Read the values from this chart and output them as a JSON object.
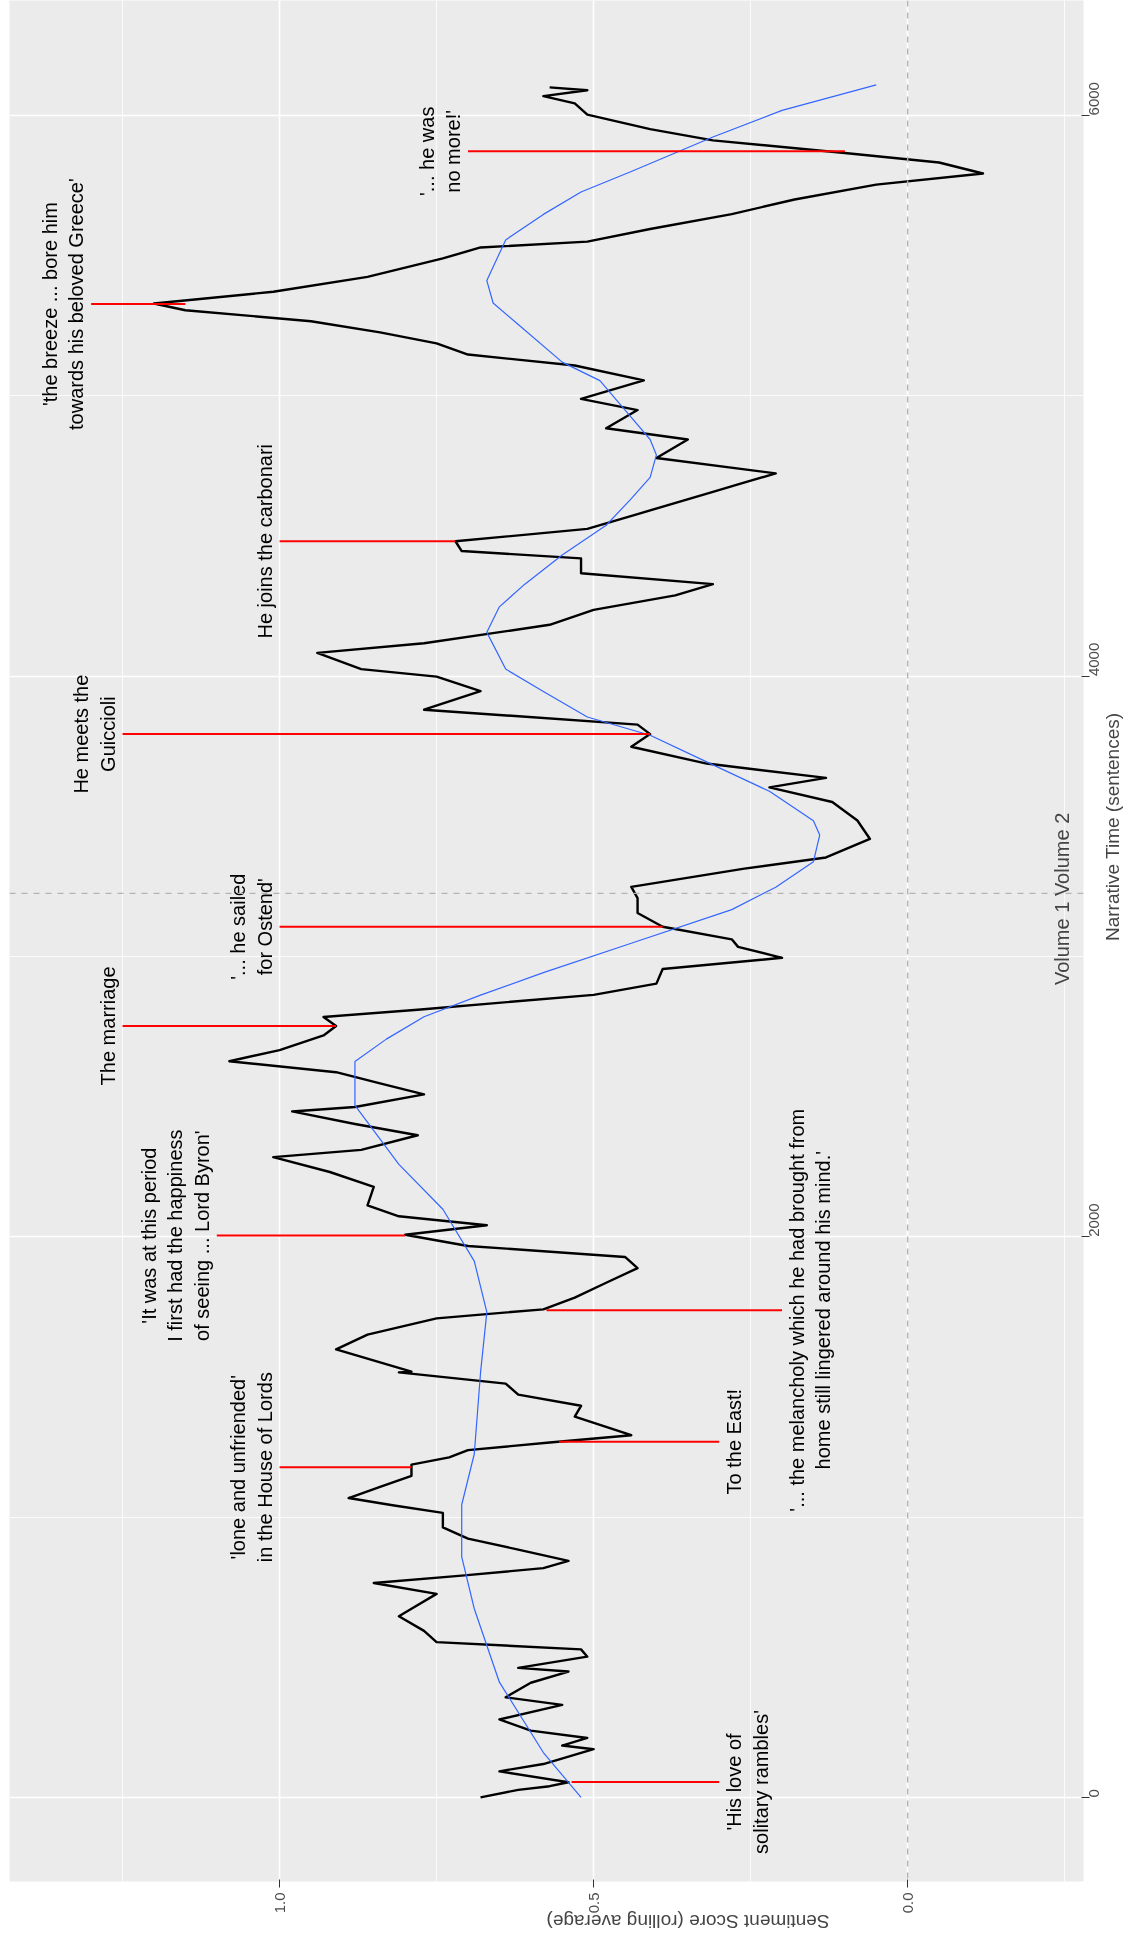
{
  "chart_data": {
    "type": "line",
    "xlabel": "Sentiment Score (rolling average)",
    "ylabel": "Narrative Time (sentences)",
    "xlim": [
      1.43,
      -0.28
    ],
    "ylim": [
      -300,
      6410
    ],
    "xticks": [
      {
        "value": 1.0,
        "label": "1.0"
      },
      {
        "value": 0.5,
        "label": "0.5"
      },
      {
        "value": 0,
        "label": "0.0"
      }
    ],
    "yticks": [
      0,
      2000,
      4000,
      6000
    ],
    "grid": true,
    "marker": "none",
    "line_style": "solid",
    "series": [
      {
        "color": "#000000",
        "type": "line",
        "values": [
          0,
          27,
          40,
          54,
          93,
          119,
          172,
          185,
          212,
          238,
          278,
          330,
          357,
          409,
          449,
          462,
          502,
          528,
          554,
          594,
          646,
          673,
          726,
          765,
          791,
          818,
          844,
          884,
          923,
          963,
          1015,
          1042,
          1068,
          1108,
          1147,
          1187,
          1213,
          1239,
          1266,
          1292,
          1358,
          1397,
          1437,
          1476,
          1516,
          1519,
          1598,
          1651,
          1709,
          1741,
          1783,
          1836,
          1888,
          1928,
          1967,
          2007,
          2041,
          2073,
          2112,
          2178,
          2231,
          2284,
          2310,
          2362,
          2402,
          2447,
          2463,
          2508,
          2547,
          2587,
          2626,
          2666,
          2718,
          2752,
          2784,
          2810,
          2863,
          2903,
          2955,
          2995,
          3034,
          3061,
          3106,
          3155,
          3208,
          3248,
          3313,
          3353,
          3419,
          3485,
          3551,
          3603,
          3637,
          3688,
          3748,
          3793,
          3827,
          3880,
          3946,
          3998,
          4025,
          4083,
          4117,
          4183,
          4236,
          4288,
          4328,
          4367,
          4420,
          4446,
          4481,
          4525,
          4578,
          4657,
          4684,
          4723,
          4778,
          4844,
          4884,
          4949,
          4989,
          5055,
          5108,
          5147,
          5187,
          5226,
          5266,
          5305,
          5329,
          5371,
          5424,
          5490,
          5529,
          5550,
          5595,
          5648,
          5700,
          5753,
          5793,
          5832,
          5866,
          5911,
          5951,
          6003,
          6043,
          6069,
          6090,
          6100
        ],
        "x": [
          0.68,
          0.62,
          0.57,
          0.54,
          0.65,
          0.58,
          0.5,
          0.55,
          0.51,
          0.6,
          0.65,
          0.55,
          0.64,
          0.6,
          0.54,
          0.62,
          0.51,
          0.52,
          0.75,
          0.77,
          0.81,
          0.79,
          0.75,
          0.85,
          0.71,
          0.58,
          0.54,
          0.62,
          0.7,
          0.74,
          0.74,
          0.82,
          0.89,
          0.84,
          0.79,
          0.79,
          0.73,
          0.7,
          0.57,
          0.44,
          0.53,
          0.52,
          0.62,
          0.64,
          0.81,
          0.79,
          0.91,
          0.86,
          0.75,
          0.58,
          0.53,
          0.48,
          0.43,
          0.45,
          0.7,
          0.8,
          0.67,
          0.81,
          0.86,
          0.85,
          0.92,
          1.01,
          0.87,
          0.78,
          0.88,
          0.98,
          0.88,
          0.77,
          0.84,
          0.91,
          1.08,
          1.0,
          0.93,
          0.91,
          0.93,
          0.78,
          0.5,
          0.4,
          0.39,
          0.2,
          0.27,
          0.28,
          0.39,
          0.43,
          0.43,
          0.44,
          0.26,
          0.13,
          0.06,
          0.08,
          0.12,
          0.22,
          0.13,
          0.32,
          0.44,
          0.41,
          0.43,
          0.77,
          0.68,
          0.75,
          0.87,
          0.94,
          0.77,
          0.57,
          0.5,
          0.37,
          0.31,
          0.52,
          0.52,
          0.71,
          0.72,
          0.51,
          0.43,
          0.31,
          0.27,
          0.21,
          0.4,
          0.35,
          0.48,
          0.43,
          0.52,
          0.42,
          0.53,
          0.7,
          0.75,
          0.84,
          0.95,
          1.15,
          1.2,
          1.01,
          0.86,
          0.74,
          0.68,
          0.51,
          0.41,
          0.28,
          0.18,
          0.05,
          -0.12,
          -0.05,
          0.1,
          0.31,
          0.41,
          0.51,
          0.53,
          0.58,
          0.51,
          0.57
        ]
      },
      {
        "color": "#3366ff",
        "type": "line",
        "values": [
          0,
          160,
          411,
          673,
          858,
          1044,
          1225,
          1516,
          1731,
          1913,
          2098,
          2258,
          2469,
          2625,
          2705,
          2785,
          2862,
          2942,
          3047,
          3167,
          3247,
          3338,
          3433,
          3484,
          3589,
          3694,
          3789,
          3854,
          3945,
          4025,
          4156,
          4247,
          4327,
          4432,
          4538,
          4633,
          4709,
          4789,
          4844,
          4923,
          5054,
          5120,
          5254,
          5331,
          5411,
          5556,
          5647,
          5727,
          5800,
          5923,
          6018,
          6109
        ],
        "x": [
          0.52,
          0.58,
          0.65,
          0.69,
          0.71,
          0.71,
          0.69,
          0.68,
          0.67,
          0.69,
          0.74,
          0.81,
          0.88,
          0.88,
          0.83,
          0.77,
          0.68,
          0.58,
          0.44,
          0.28,
          0.21,
          0.15,
          0.14,
          0.15,
          0.22,
          0.32,
          0.41,
          0.51,
          0.58,
          0.64,
          0.67,
          0.65,
          0.61,
          0.55,
          0.48,
          0.44,
          0.41,
          0.4,
          0.41,
          0.44,
          0.49,
          0.55,
          0.62,
          0.66,
          0.67,
          0.64,
          0.58,
          0.52,
          0.44,
          0.31,
          0.2,
          0.05
        ]
      }
    ],
    "ref_lines": [
      {
        "axis": "x",
        "value": 0,
        "color": "#b3b3b3",
        "line_style": "dashed"
      },
      {
        "axis": "y",
        "value": 3225,
        "label": "Volume 1   Volume 2",
        "color": "#b3b3b3",
        "line_style": "dashed"
      }
    ],
    "annotations": [
      {
        "text": "'His love of\nsolitary rambles'",
        "x": 0.535,
        "y": 55
      },
      {
        "text": "'lone and unfriended'\nin the House of Lords",
        "x": 0.79,
        "y": 1178
      },
      {
        "text": "To the East!",
        "x": 0.555,
        "y": 1269
      },
      {
        "text": "'... the melancholy which he had brought from\nhome still lingered around his mind.'",
        "x": 0.575,
        "y": 1738
      },
      {
        "text": "'It was at this period\nI first had the happiness\nof seeing ... Lord Byron'",
        "x": 0.8,
        "y": 2004
      },
      {
        "text": "The marriage",
        "x": 0.91,
        "y": 2752
      },
      {
        "text": "'... he sailed\nfor Ostend'",
        "x": 0.39,
        "y": 3106
      },
      {
        "text": "He meets the\nGuiccioli",
        "x": 0.41,
        "y": 3793
      },
      {
        "text": "He joins the carbonari",
        "x": 0.72,
        "y": 4481
      },
      {
        "text": "'the breeze ... bore him\ntowards his beloved Greece'",
        "x": 1.15,
        "y": 5327
      },
      {
        "text": "'... he was\nno more!'",
        "x": 0.1,
        "y": 5872
      }
    ]
  }
}
